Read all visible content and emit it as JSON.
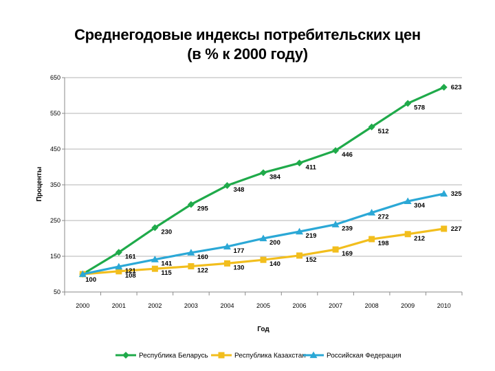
{
  "chart_data": {
    "type": "line",
    "title": "Среднегодовые индексы потребительских цен",
    "subtitle": "(в % к 2000 году)",
    "xlabel": "Год",
    "ylabel": "Проценты",
    "x": [
      "2000",
      "2001",
      "2002",
      "2003",
      "2004",
      "2005",
      "2006",
      "2007",
      "2008",
      "2009",
      "2010"
    ],
    "ylim": [
      50,
      650
    ],
    "yticks": [
      50,
      150,
      250,
      350,
      450,
      550,
      650
    ],
    "ytick_labels": [
      "50",
      "150",
      "250",
      "350",
      "450",
      "550",
      "650"
    ],
    "grid": "horizontal",
    "legend_position": "bottom",
    "series": [
      {
        "name": "Республика Беларусь",
        "color": "#1faa4a",
        "marker": "diamond",
        "values": [
          100,
          161,
          230,
          295,
          348,
          384,
          411,
          446,
          512,
          578,
          623
        ],
        "labels": [
          "",
          "161",
          "230",
          "295",
          "348",
          "384",
          "411",
          "446",
          "512",
          "578",
          "623"
        ]
      },
      {
        "name": "Республика Казахстан",
        "color": "#f2be1d",
        "marker": "square",
        "values": [
          100,
          108,
          115,
          122,
          130,
          140,
          152,
          169,
          198,
          212,
          227
        ],
        "labels": [
          "100",
          "108",
          "115",
          "122",
          "130",
          "140",
          "152",
          "169",
          "198",
          "212",
          "227"
        ]
      },
      {
        "name": "Российская Федерация",
        "color": "#2ba8d6",
        "marker": "triangle",
        "values": [
          100,
          121,
          141,
          160,
          177,
          200,
          219,
          239,
          272,
          304,
          325
        ],
        "labels": [
          "",
          "121",
          "141",
          "160",
          "177",
          "200",
          "219",
          "239",
          "272",
          "304",
          "325"
        ]
      }
    ]
  }
}
